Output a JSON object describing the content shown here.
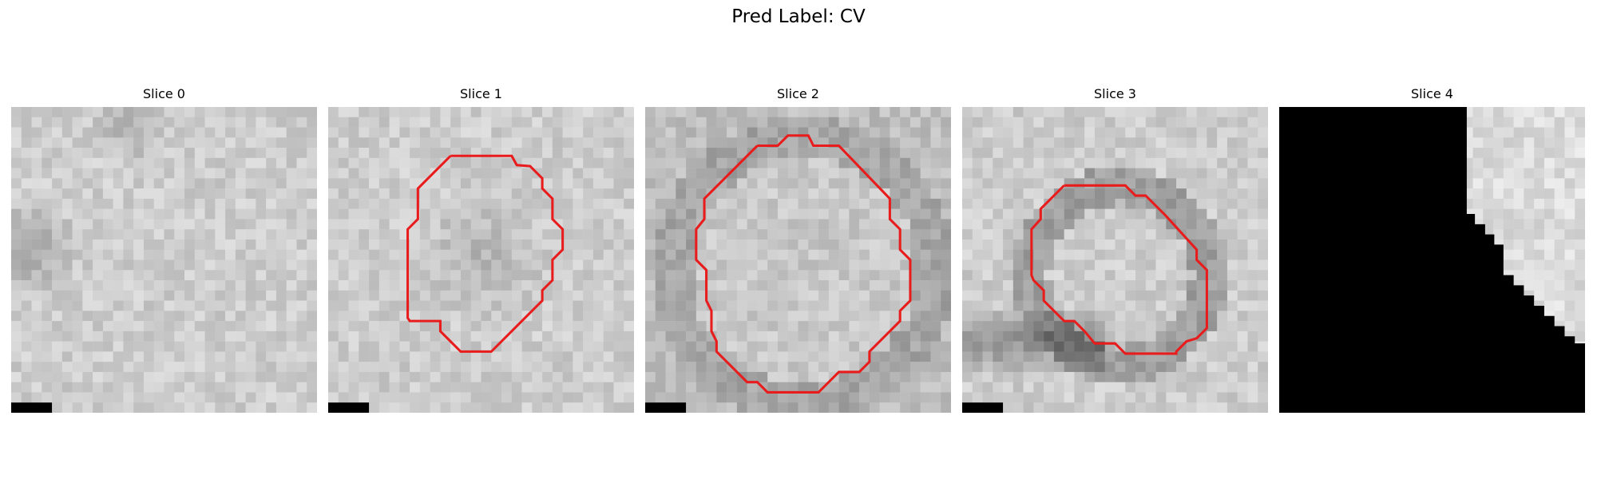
{
  "figure": {
    "title": "Pred Label: CV"
  },
  "panels": [
    {
      "title": "Slice 0"
    },
    {
      "title": "Slice 1"
    },
    {
      "title": "Slice 2"
    },
    {
      "title": "Slice 3"
    },
    {
      "title": "Slice 4"
    }
  ],
  "colors": {
    "contour": "#e81c1c",
    "masked_region": "#000000",
    "background": "#ffffff"
  }
}
